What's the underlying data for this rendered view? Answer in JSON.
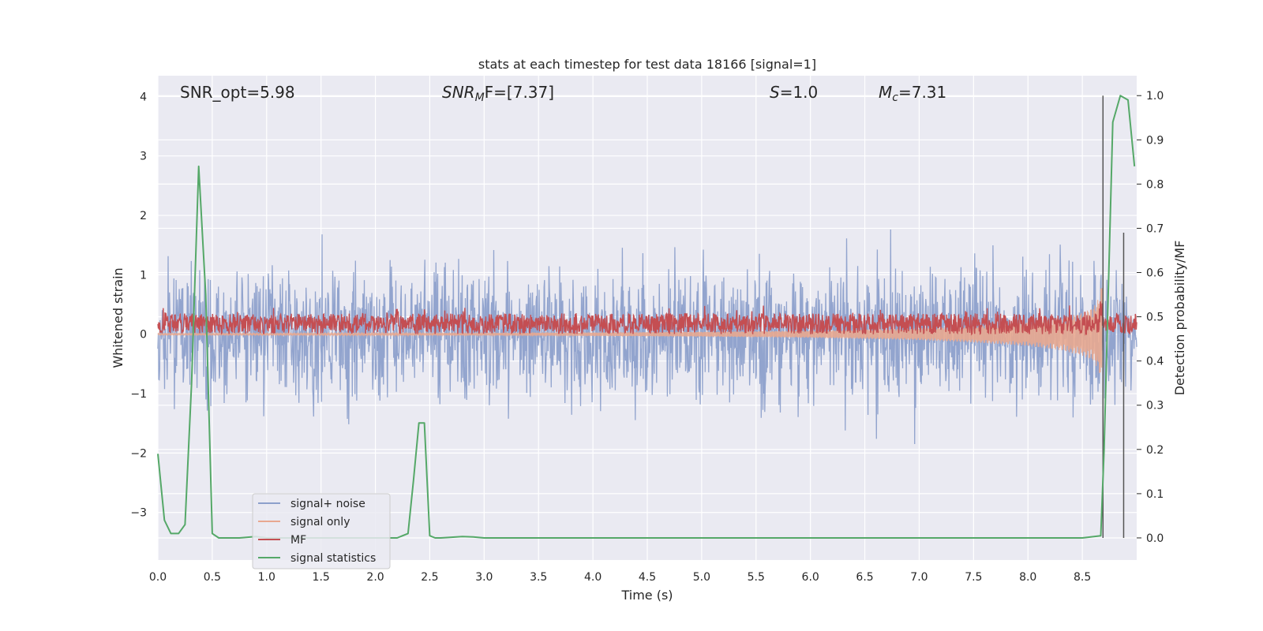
{
  "chart_data": {
    "type": "line",
    "title": "stats at each timestep for test data 18166 [signal=1]",
    "xlabel": "Time (s)",
    "ylabel": "Whitened strain",
    "ylabel_right": "Detection probability/MF",
    "xlim": [
      0.0,
      9.0
    ],
    "ylim": [
      -3.8,
      4.35
    ],
    "ylim_right": [
      -0.05,
      1.045
    ],
    "x_ticks": [
      "0.0",
      "0.5",
      "1.0",
      "1.5",
      "2.0",
      "2.5",
      "3.0",
      "3.5",
      "4.0",
      "4.5",
      "5.0",
      "5.5",
      "6.0",
      "6.5",
      "7.0",
      "7.5",
      "8.0",
      "8.5"
    ],
    "y_ticks": [
      "4",
      "3",
      "2",
      "1",
      "0",
      "−1",
      "−2",
      "−3"
    ],
    "y_ticks_right": [
      "1.0",
      "0.9",
      "0.8",
      "0.7",
      "0.6",
      "0.5",
      "0.4",
      "0.3",
      "0.2",
      "0.1",
      "0.0"
    ],
    "annotations": {
      "snr_opt": "SNR_opt=5.98",
      "snr_mf_name": "SNR",
      "snr_mf_sub": "M",
      "snr_mf_rest": "F=[7.37]",
      "s_name": "S",
      "s_rest": "=1.0",
      "mc_name": "M",
      "mc_sub": "c",
      "mc_rest": "=7.31"
    },
    "legend": {
      "location": "lower-left",
      "entries": [
        "signal+ noise",
        "signal only",
        "MF",
        "signal statistics"
      ]
    },
    "colors": {
      "signal_noise": "#8da0cb",
      "signal_only": "#e8a890",
      "mf": "#c44e52",
      "signal_statistics": "#55a868",
      "vline": "#555555",
      "plot_bg": "#eaeaf2",
      "grid": "#ffffff"
    },
    "series": [
      {
        "name": "signal statistics",
        "axis": "right",
        "x": [
          0.0,
          0.06,
          0.12,
          0.19,
          0.25,
          0.31,
          0.375,
          0.44,
          0.5,
          0.56,
          0.62,
          0.75,
          0.9,
          1.0,
          1.5,
          2.0,
          2.2,
          2.3,
          2.35,
          2.4,
          2.45,
          2.5,
          2.55,
          2.6,
          2.8,
          2.9,
          3.0,
          3.5,
          4.0,
          5.0,
          6.0,
          7.0,
          8.0,
          8.5,
          8.67,
          8.7,
          8.78,
          8.85,
          8.92,
          8.98
        ],
        "y": [
          0.19,
          0.04,
          0.01,
          0.01,
          0.03,
          0.35,
          0.84,
          0.55,
          0.01,
          0.0,
          0.0,
          0.0,
          0.003,
          0.0,
          0.0,
          0.0,
          0.0,
          0.01,
          0.13,
          0.26,
          0.26,
          0.005,
          0.0,
          0.0,
          0.003,
          0.002,
          0.0,
          0.0,
          0.0,
          0.0,
          0.0,
          0.0,
          0.0,
          0.0,
          0.005,
          0.2,
          0.94,
          1.0,
          0.99,
          0.84
        ]
      },
      {
        "name": "signal only",
        "axis": "left",
        "envelope": {
          "x": [
            0.0,
            1.0,
            2.0,
            3.0,
            4.0,
            5.0,
            6.0,
            7.0,
            7.5,
            8.0,
            8.3,
            8.5,
            8.6,
            8.65,
            8.68
          ],
          "amplitude": [
            0.01,
            0.012,
            0.015,
            0.02,
            0.028,
            0.04,
            0.06,
            0.1,
            0.14,
            0.2,
            0.27,
            0.36,
            0.45,
            0.6,
            0.85
          ]
        }
      },
      {
        "name": "MF",
        "axis": "left",
        "baseline_range": [
          0.0,
          0.35
        ],
        "peaks": [
          {
            "x": 0.08,
            "y": 0.5
          },
          {
            "x": 2.2,
            "y": 0.68
          },
          {
            "x": 2.45,
            "y": 0.52
          },
          {
            "x": 2.82,
            "y": 0.55
          },
          {
            "x": 5.7,
            "y": 0.52
          },
          {
            "x": 6.65,
            "y": 0.52
          },
          {
            "x": 8.1,
            "y": 0.55
          },
          {
            "x": 8.67,
            "y": 1.0
          }
        ]
      }
    ],
    "vertical_lines": [
      {
        "x": 8.69,
        "y_right": [
          0.0,
          1.0
        ]
      },
      {
        "x": 8.88,
        "y_right": [
          0.0,
          0.69
        ]
      }
    ]
  }
}
